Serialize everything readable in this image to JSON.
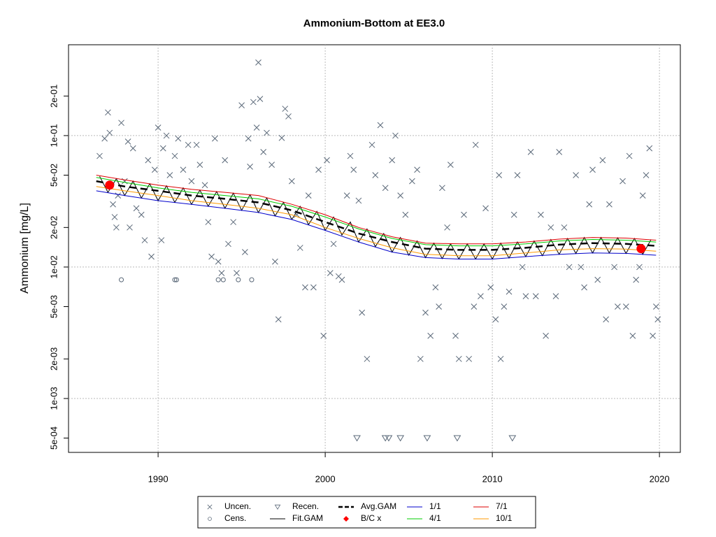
{
  "chart_data": {
    "type": "scatter",
    "title": "Ammonium-Bottom at EE3.0",
    "y_label": "Ammonium [mg/L]",
    "log_y": true,
    "grid": true,
    "legend": "bottom",
    "xlim": [
      1984.64,
      2021.25
    ],
    "xticks": [
      1990,
      2000,
      2010,
      2020
    ],
    "ylim": [
      0.000389,
      0.491
    ],
    "yticks": [
      {
        "value": 0.0005,
        "label": "5e-04"
      },
      {
        "value": 0.001,
        "label": "1e-03"
      },
      {
        "value": 0.002,
        "label": "2e-03"
      },
      {
        "value": 0.005,
        "label": "5e-03"
      },
      {
        "value": 0.01,
        "label": "1e-02"
      },
      {
        "value": 0.02,
        "label": "2e-02"
      },
      {
        "value": 0.05,
        "label": "5e-02"
      },
      {
        "value": 0.1,
        "label": "1e-01"
      },
      {
        "value": 0.2,
        "label": "2e-01"
      }
    ],
    "series": [
      {
        "name": "Uncen.",
        "color": "#5a6878",
        "marker": "x",
        "x": [
          1986.5,
          1986.8,
          1987.0,
          1987.1,
          1987.3,
          1987.4,
          1987.5,
          1987.6,
          1987.8,
          1988.0,
          1988.2,
          1988.5,
          1988.3,
          1988.7,
          1989.0,
          1989.2,
          1989.4,
          1989.6,
          1989.8,
          1990.0,
          1990.2,
          1990.3,
          1990.5,
          1990.7,
          1991.0,
          1991.2,
          1991.5,
          1991.8,
          1992.0,
          1992.3,
          1992.5,
          1992.8,
          1993.0,
          1993.2,
          1993.4,
          1993.6,
          1993.8,
          1994.0,
          1994.2,
          1994.5,
          1994.7,
          1995.0,
          1995.2,
          1995.4,
          1995.5,
          1995.7,
          1995.9,
          1996.0,
          1996.1,
          1996.3,
          1996.5,
          1996.8,
          1997.0,
          1997.2,
          1997.4,
          1997.6,
          1997.8,
          1998.0,
          1998.3,
          1998.5,
          1998.8,
          1999.0,
          1999.3,
          1999.6,
          1999.9,
          2000.1,
          2000.3,
          2000.5,
          2000.8,
          2001.0,
          2001.3,
          2001.5,
          2001.7,
          2002.0,
          2002.2,
          2002.5,
          2002.8,
          2003.0,
          2003.3,
          2003.6,
          2004.0,
          2004.2,
          2004.5,
          2004.8,
          2005.2,
          2005.5,
          2005.7,
          2006.0,
          2006.3,
          2006.6,
          2006.8,
          2007.0,
          2007.3,
          2007.5,
          2007.8,
          2008.0,
          2008.3,
          2008.6,
          2008.9,
          2009.0,
          2009.3,
          2009.6,
          2009.9,
          2010.2,
          2010.4,
          2010.5,
          2010.7,
          2011.0,
          2011.3,
          2011.5,
          2011.8,
          2012.0,
          2012.3,
          2012.6,
          2012.9,
          2013.2,
          2013.5,
          2013.8,
          2014.0,
          2014.3,
          2014.6,
          2015.0,
          2015.3,
          2015.5,
          2015.8,
          2016.0,
          2016.3,
          2016.6,
          2016.8,
          2017.0,
          2017.3,
          2017.5,
          2017.8,
          2018.0,
          2018.2,
          2018.4,
          2018.6,
          2018.8,
          2019.0,
          2019.2,
          2019.4,
          2019.6,
          2019.8,
          2019.9
        ],
        "values": [
          0.07,
          0.095,
          0.15,
          0.105,
          0.03,
          0.024,
          0.02,
          0.035,
          0.125,
          0.045,
          0.09,
          0.08,
          0.02,
          0.028,
          0.025,
          0.016,
          0.065,
          0.012,
          0.055,
          0.115,
          0.016,
          0.08,
          0.1,
          0.05,
          0.07,
          0.095,
          0.055,
          0.085,
          0.045,
          0.085,
          0.06,
          0.042,
          0.022,
          0.012,
          0.095,
          0.011,
          0.009,
          0.065,
          0.015,
          0.022,
          0.009,
          0.17,
          0.013,
          0.095,
          0.058,
          0.18,
          0.115,
          0.36,
          0.19,
          0.075,
          0.105,
          0.06,
          0.011,
          0.004,
          0.096,
          0.16,
          0.14,
          0.045,
          0.025,
          0.014,
          0.007,
          0.035,
          0.007,
          0.055,
          0.003,
          0.065,
          0.009,
          0.015,
          0.0085,
          0.008,
          0.035,
          0.07,
          0.055,
          0.032,
          0.0045,
          0.002,
          0.085,
          0.05,
          0.12,
          0.04,
          0.065,
          0.1,
          0.035,
          0.025,
          0.045,
          0.055,
          0.002,
          0.0045,
          0.003,
          0.007,
          0.005,
          0.04,
          0.02,
          0.06,
          0.003,
          0.002,
          0.025,
          0.002,
          0.005,
          0.085,
          0.006,
          0.028,
          0.007,
          0.004,
          0.05,
          0.002,
          0.005,
          0.0065,
          0.025,
          0.05,
          0.01,
          0.006,
          0.075,
          0.006,
          0.025,
          0.003,
          0.02,
          0.006,
          0.075,
          0.02,
          0.01,
          0.05,
          0.01,
          0.007,
          0.03,
          0.055,
          0.008,
          0.065,
          0.004,
          0.03,
          0.01,
          0.005,
          0.045,
          0.005,
          0.07,
          0.003,
          0.008,
          0.01,
          0.035,
          0.05,
          0.08,
          0.003,
          0.005,
          0.004
        ]
      },
      {
        "name": "Cens.",
        "color": "#5a6878",
        "marker": "circle",
        "x": [
          1987.8,
          1991.0,
          1991.1,
          1993.6,
          1993.9,
          1994.8,
          1995.6
        ],
        "values": [
          0.008,
          0.008,
          0.008,
          0.008,
          0.008,
          0.008,
          0.008
        ]
      },
      {
        "name": "Recen.",
        "color": "#5a6878",
        "marker": "triangle",
        "x": [
          2001.9,
          2003.6,
          2003.8,
          2004.5,
          2006.1,
          2007.9,
          2011.2
        ],
        "values": [
          0.0005,
          0.0005,
          0.0005,
          0.0005,
          0.0005,
          0.0005,
          0.0005
        ]
      },
      {
        "name": "Fit.GAM",
        "color": "#000000",
        "marker": "line",
        "width": 1,
        "x": [
          1986.5,
          1987,
          1987.5,
          1988,
          1988.5,
          1989,
          1989.5,
          1990,
          1990.5,
          1991,
          1991.5,
          1992,
          1992.5,
          1993,
          1993.5,
          1994,
          1994.5,
          1995,
          1995.5,
          1996,
          1996.5,
          1997,
          1997.5,
          1998,
          1998.5,
          1999,
          1999.5,
          2000,
          2000.5,
          2001,
          2001.5,
          2002,
          2002.5,
          2003,
          2003.5,
          2004,
          2004.5,
          2005,
          2005.5,
          2006,
          2006.5,
          2007,
          2007.5,
          2008,
          2008.5,
          2009,
          2009.5,
          2010,
          2010.5,
          2011,
          2011.5,
          2012,
          2012.5,
          2013,
          2013.5,
          2014,
          2014.5,
          2015,
          2015.5,
          2016,
          2016.5,
          2017,
          2017.5,
          2018,
          2018.5,
          2019,
          2019.5
        ],
        "values": [
          0.049,
          0.037,
          0.047,
          0.035,
          0.045,
          0.0335,
          0.043,
          0.032,
          0.0415,
          0.031,
          0.04,
          0.03,
          0.0385,
          0.029,
          0.0375,
          0.028,
          0.0365,
          0.027,
          0.0355,
          0.026,
          0.0335,
          0.0245,
          0.031,
          0.023,
          0.029,
          0.021,
          0.0265,
          0.019,
          0.024,
          0.0175,
          0.022,
          0.0155,
          0.0195,
          0.0143,
          0.018,
          0.013,
          0.0168,
          0.0123,
          0.0158,
          0.0118,
          0.0152,
          0.0116,
          0.015,
          0.0115,
          0.015,
          0.0115,
          0.015,
          0.0115,
          0.0152,
          0.0117,
          0.0155,
          0.012,
          0.0158,
          0.0122,
          0.0162,
          0.0125,
          0.0165,
          0.0127,
          0.0168,
          0.0128,
          0.0168,
          0.0128,
          0.0167,
          0.0127,
          0.0165,
          0.0125,
          0.0162
        ]
      },
      {
        "name": "Avg.GAM",
        "color": "#000000",
        "marker": "line",
        "width": 2.5,
        "dash": true,
        "x": [
          1986.3,
          1988,
          1990,
          1992,
          1994,
          1996,
          1998,
          2000,
          2002,
          2004,
          2006,
          2008,
          2010,
          2012,
          2014,
          2016,
          2018,
          2019.8
        ],
        "values": [
          0.045,
          0.041,
          0.038,
          0.035,
          0.033,
          0.031,
          0.027,
          0.022,
          0.018,
          0.0155,
          0.0138,
          0.0135,
          0.0135,
          0.014,
          0.0148,
          0.0152,
          0.015,
          0.0145
        ]
      },
      {
        "name": "B/C x",
        "color": "#ff0000",
        "marker": "dot",
        "x": [
          1987.1,
          2018.9
        ],
        "values": [
          0.042,
          0.0138
        ]
      },
      {
        "name": "1/1",
        "color": "#0000cc",
        "marker": "line",
        "width": 1,
        "x": [
          1986.3,
          1988,
          1990,
          1992,
          1994,
          1996,
          1998,
          2000,
          2002,
          2004,
          2006,
          2008,
          2010,
          2012,
          2014,
          2016,
          2018,
          2019.8
        ],
        "values": [
          0.038,
          0.035,
          0.032,
          0.03,
          0.028,
          0.026,
          0.023,
          0.019,
          0.0155,
          0.013,
          0.0118,
          0.0115,
          0.0115,
          0.012,
          0.0125,
          0.0128,
          0.0127,
          0.0123
        ]
      },
      {
        "name": "4/1",
        "color": "#00cc00",
        "marker": "line",
        "width": 1,
        "x": [
          1986.3,
          1988,
          1990,
          1992,
          1994,
          1996,
          1998,
          2000,
          2002,
          2004,
          2006,
          2008,
          2010,
          2012,
          2014,
          2016,
          2018,
          2019.8
        ],
        "values": [
          0.048,
          0.044,
          0.04,
          0.037,
          0.035,
          0.033,
          0.029,
          0.024,
          0.0195,
          0.0165,
          0.0148,
          0.0145,
          0.0145,
          0.015,
          0.0158,
          0.0162,
          0.016,
          0.0155
        ]
      },
      {
        "name": "7/1",
        "color": "#dd0000",
        "marker": "line",
        "width": 1,
        "x": [
          1986.3,
          1988,
          1990,
          1992,
          1994,
          1996,
          1998,
          2000,
          2002,
          2004,
          2006,
          2008,
          2010,
          2012,
          2014,
          2016,
          2018,
          2019.8
        ],
        "values": [
          0.05,
          0.046,
          0.042,
          0.039,
          0.037,
          0.035,
          0.03,
          0.025,
          0.02,
          0.017,
          0.0152,
          0.015,
          0.015,
          0.0155,
          0.0163,
          0.0168,
          0.0166,
          0.016
        ]
      },
      {
        "name": "10/1",
        "color": "#ff9900",
        "marker": "line",
        "width": 1,
        "x": [
          1986.3,
          1988,
          1990,
          1992,
          1994,
          1996,
          1998,
          2000,
          2002,
          2004,
          2006,
          2008,
          2010,
          2012,
          2014,
          2016,
          2018,
          2019.8
        ],
        "values": [
          0.041,
          0.038,
          0.035,
          0.032,
          0.03,
          0.028,
          0.025,
          0.02,
          0.0165,
          0.014,
          0.0125,
          0.0122,
          0.0122,
          0.0128,
          0.0135,
          0.0138,
          0.0137,
          0.0132
        ]
      }
    ]
  }
}
